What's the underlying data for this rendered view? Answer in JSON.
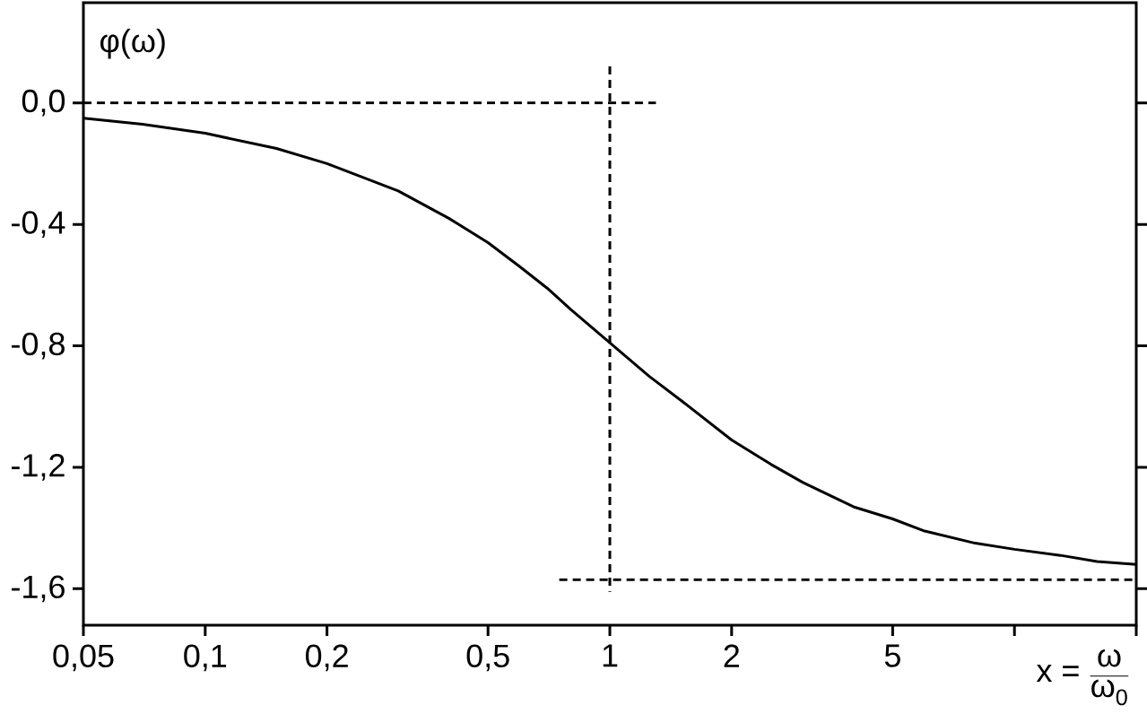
{
  "chart_data": {
    "type": "line",
    "xlabel": "\\text{x = }\\frac{\\text{ω}}{\\text{ω}_{\\text{0}}}",
    "ylabel": "φ(ω)",
    "log": "x",
    "xlim": [
      0.05,
      20
    ],
    "ylim": [
      -1.72,
      0.33
    ],
    "xticks": [
      {
        "value": 0.05,
        "label": "0,05"
      },
      {
        "value": 0.1,
        "label": "0,1"
      },
      {
        "value": 0.2,
        "label": "0,2"
      },
      {
        "value": 0.5,
        "label": "0,5"
      },
      {
        "value": 1,
        "label": "1"
      },
      {
        "value": 2,
        "label": "2"
      },
      {
        "value": 5,
        "label": "5"
      },
      {
        "value": 10,
        "label": null
      },
      {
        "value": 20,
        "label": null
      }
    ],
    "yticks": [
      {
        "value": 0,
        "label": "0,0"
      },
      {
        "value": -0.4,
        "label": "-0,4"
      },
      {
        "value": -0.8,
        "label": "-0,8"
      },
      {
        "value": -1.2,
        "label": "-1,2"
      },
      {
        "value": -1.6,
        "label": "-1,6"
      }
    ],
    "series": [
      {
        "color": "#000000",
        "line_style": "solid",
        "x": [
          0.05,
          0.07,
          0.1,
          0.15,
          0.2,
          0.3,
          0.4,
          0.5,
          0.6,
          0.7,
          0.8,
          1,
          1.25,
          1.5,
          2,
          2.5,
          3,
          4,
          5,
          6,
          8,
          10,
          13,
          16,
          20
        ],
        "values": [
          -0.05,
          -0.07,
          -0.1,
          -0.15,
          -0.2,
          -0.29,
          -0.38,
          -0.46,
          -0.54,
          -0.61,
          -0.68,
          -0.79,
          -0.9,
          -0.98,
          -1.11,
          -1.19,
          -1.25,
          -1.33,
          -1.37,
          -1.41,
          -1.45,
          -1.47,
          -1.49,
          -1.51,
          -1.52
        ]
      },
      {
        "color": "#000000",
        "line_style": "dashed",
        "x": [
          0.05,
          1.3
        ],
        "values": [
          0,
          0
        ]
      },
      {
        "color": "#000000",
        "line_style": "dashed",
        "x": [
          1,
          1
        ],
        "values": [
          0.12,
          -1.61
        ]
      },
      {
        "color": "#000000",
        "line_style": "dashed",
        "x": [
          0.75,
          20
        ],
        "values": [
          -1.57,
          -1.57
        ]
      }
    ]
  }
}
